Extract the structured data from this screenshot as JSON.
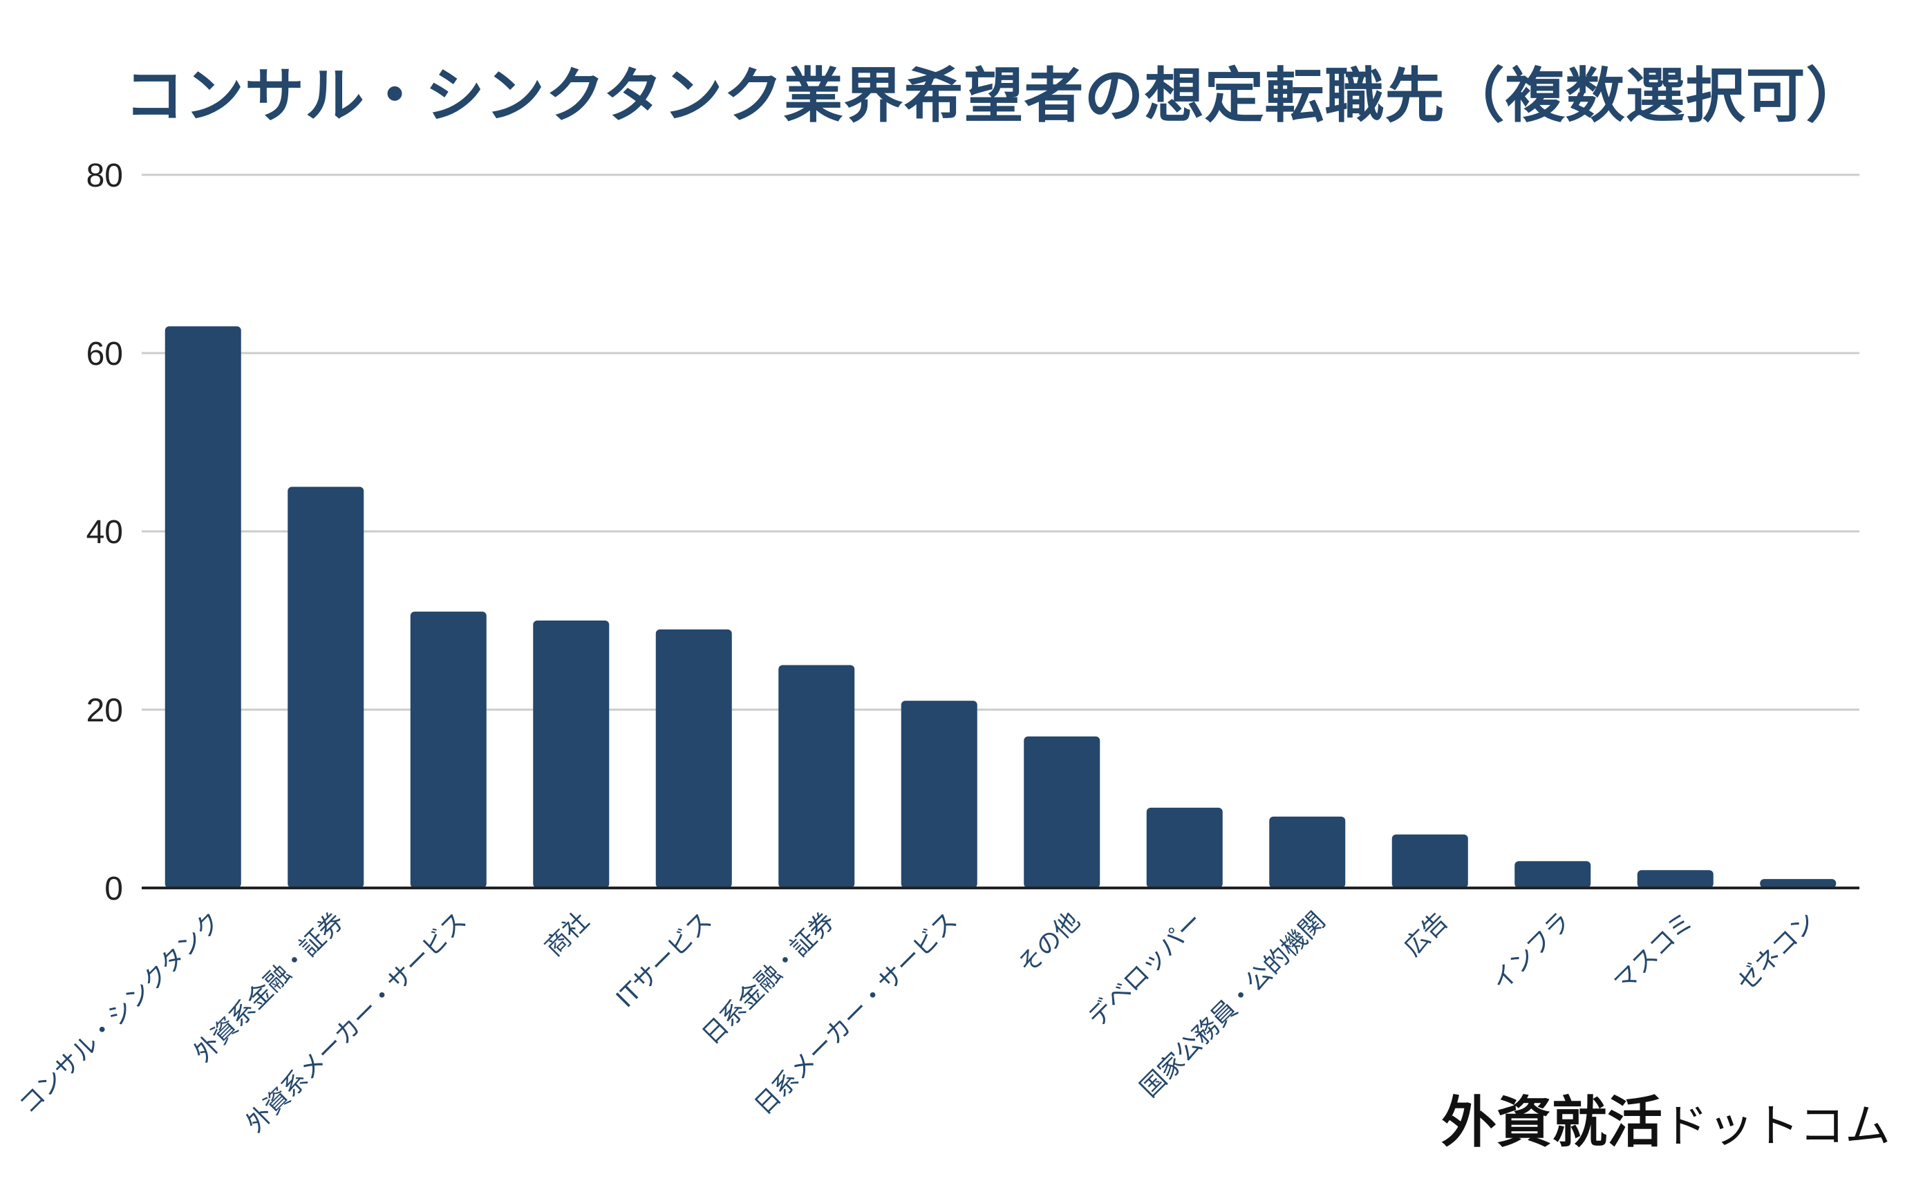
{
  "chart_data": {
    "type": "bar",
    "title": "コンサル・シンクタンク業界希望者の想定転職先（複数選択可）",
    "xlabel": "",
    "ylabel": "",
    "ylim": [
      0,
      80
    ],
    "yticks": [
      0,
      20,
      40,
      60,
      80
    ],
    "grid": true,
    "categories": [
      "コンサル・シンクタンク",
      "外資系金融・証券",
      "外資系メーカー・サービス",
      "商社",
      "ITサービス",
      "日系金融・証券",
      "日系メーカー・サービス",
      "その他",
      "デベロッパー",
      "国家公務員・公的機関",
      "広告",
      "インフラ",
      "マスコミ",
      "ゼネコン"
    ],
    "values": [
      63,
      45,
      31,
      30,
      29,
      25,
      21,
      17,
      9,
      8,
      6,
      3,
      2,
      1
    ],
    "bar_color": "#24476b",
    "grid_color": "#cccccc",
    "axis_color": "#222222"
  },
  "watermark": {
    "kanji": "外資就活",
    "kana": "ドットコム"
  }
}
